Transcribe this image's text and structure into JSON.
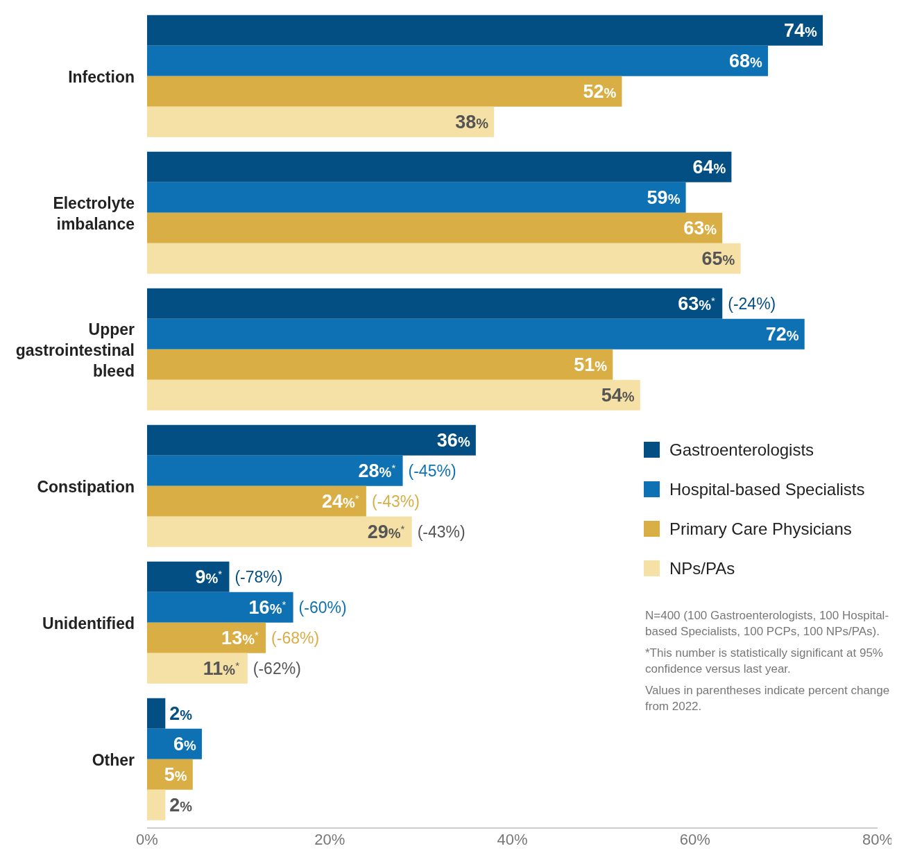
{
  "chart_data": {
    "type": "bar",
    "orientation": "horizontal",
    "categories": [
      "Infection",
      "Electrolyte imbalance",
      "Upper gastrointestinal bleed",
      "Constipation",
      "Unidentified",
      "Other"
    ],
    "series": [
      {
        "name": "Gastroenterologists",
        "color": "#034f84",
        "values": [
          74,
          64,
          63,
          36,
          9,
          2
        ],
        "value_labels": [
          "74%",
          "64%",
          "63%$^{*}$ (-24%)",
          "36%",
          "9%$^{*}$ (-78%)",
          "2%"
        ]
      },
      {
        "name": "Hospital-based Specialists",
        "color": "#0d71b4",
        "values": [
          68,
          59,
          72,
          28,
          16,
          6
        ],
        "value_labels": [
          "68%",
          "59%",
          "72%",
          "28%$^{*}$ (-45%)",
          "16%$^{*}$ (-60%)",
          "6%"
        ]
      },
      {
        "name": "Primary Care Physicians",
        "color": "#d9ae45",
        "values": [
          52,
          63,
          51,
          24,
          13,
          5
        ],
        "value_labels": [
          "52%",
          "63%",
          "51%",
          "24%$^{*}$ (-43%)",
          "13%$^{*}$ (-68%)",
          "5%"
        ]
      },
      {
        "name": "NPs/PAs",
        "color": "#f5e1a5",
        "values": [
          38,
          65,
          54,
          29,
          11,
          2
        ],
        "value_labels": [
          "38%",
          "65%",
          "54%",
          "29%$^{*}$ (-43%)",
          "11%$^{*}$ (-62%)",
          "2%"
        ]
      }
    ],
    "xlim": [
      0,
      80
    ],
    "xticks": [
      {
        "value": 0,
        "label": "0%"
      },
      {
        "value": 20,
        "label": "20%"
      },
      {
        "value": 40,
        "label": "40%"
      },
      {
        "value": 60,
        "label": "60%"
      },
      {
        "value": 80,
        "label": "80%"
      }
    ],
    "legend": "right",
    "annotations": [
      "N=400 (100 Gastroenterologists, 100 Hospital-based Specialists, 100 PCPs, 100 NPs/PAs).",
      "*This number is statistically significant at 95% confidence versus last year.",
      "Values in parentheses indicate percent change from 2022."
    ]
  }
}
